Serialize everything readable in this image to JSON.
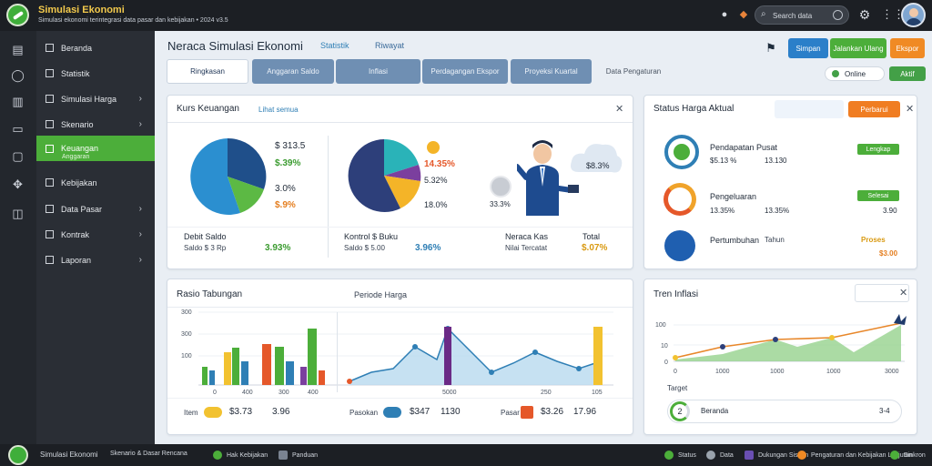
{
  "app": {
    "title": "Simulasi Ekonomi",
    "subtitle": "Simulasi ekonomi terintegrasi data pasar dan kebijakan • 2024 v3.5"
  },
  "topbar": {
    "search_placeholder": "Search data"
  },
  "sidebar": {
    "items": [
      {
        "label": "Beranda",
        "has_chevron": false
      },
      {
        "label": "Statistik",
        "has_chevron": false
      },
      {
        "label": "Simulasi Harga",
        "has_chevron": true
      },
      {
        "label": "Skenario",
        "has_chevron": true
      },
      {
        "label": "Keuangan",
        "has_chevron": false,
        "active": true,
        "sub": "Anggaran"
      },
      {
        "label": "Kebijakan",
        "has_chevron": false
      },
      {
        "label": "Data Pasar",
        "has_chevron": true
      },
      {
        "label": "Kontrak",
        "has_chevron": true
      },
      {
        "label": "Laporan",
        "has_chevron": true
      }
    ]
  },
  "header": {
    "title": "Neraca Simulasi Ekonomi",
    "link1": "Statistik",
    "link2": "Riwayat",
    "btn_primary": "Simpan",
    "btn_green": "Jalankan Ulang",
    "btn_orange": "Ekspor",
    "status": "Online",
    "badge": "Aktif"
  },
  "tabs": [
    {
      "label": "Ringkasan"
    },
    {
      "label": "Anggaran Saldo"
    },
    {
      "label": "Inflasi"
    },
    {
      "label": "Perdagangan Ekspor"
    },
    {
      "label": "Proyeksi Kuartal"
    },
    {
      "label": "Data Pengaturan"
    }
  ],
  "card_finance": {
    "title": "Kurs Keuangan",
    "link": "Lihat semua",
    "pie1_vals": [
      "$ 313.5",
      "$.39%",
      "3.0%",
      "$.9%"
    ],
    "pie2_vals": [
      "14.35%",
      "5.32%",
      "18.0%"
    ],
    "person_val": "$8.3%",
    "coin_val": "33.3%",
    "footer": [
      {
        "label": "Debit Saldo",
        "sub": "Saldo $ 3 Rp",
        "val": "3.93%"
      },
      {
        "label": "Kontrol $ Buku",
        "sub": "Saldo $ 5.00",
        "val": "3.96%"
      },
      {
        "label": "Neraca Kas",
        "sub": "Nilai Tercatat",
        "val": "$.07%"
      },
      {
        "label": "Total",
        "sub": "",
        "val": ""
      }
    ]
  },
  "card_status": {
    "title": "Status Harga Aktual",
    "btn": "Perbarui",
    "rows": [
      {
        "name": "Pendapatan Pusat",
        "sub": "$5.13 %",
        "mid": "13.130",
        "badge": "Lengkap",
        "badge_color": "#4cae3a",
        "val": ""
      },
      {
        "name": "Pengeluaran",
        "sub": "13.35%",
        "mid": "13.35%",
        "badge": "Selesai",
        "badge_color": "#4cae3a",
        "val": "3.90"
      },
      {
        "name": "Pertumbuhan",
        "sub": "",
        "mid": "Tahun",
        "badge": "Proses",
        "badge_color": "#e8a317",
        "val": "$3.00"
      }
    ]
  },
  "card_growth": {
    "title": "Rasio Tabungan",
    "subtitle": "Periode Harga",
    "y_ticks": [
      "300",
      "300",
      "100"
    ],
    "x_ticks": [
      "0",
      "400",
      "300",
      "5000",
      "250",
      "105"
    ],
    "legend": [
      {
        "color": "#f2c230",
        "label": "Item",
        "val": "$3.73",
        "val2": "3.96"
      },
      {
        "color": "#2f7fb5",
        "label": "Pasokan",
        "val": "$347",
        "val2": "1130"
      },
      {
        "color": "#e5582a",
        "label": "Pasar",
        "val": "$3.26",
        "val2": "17.96"
      }
    ]
  },
  "card_trend": {
    "title": "Tren Inflasi",
    "y_ticks": [
      "100",
      "10",
      "0"
    ],
    "x_ticks": [
      "0",
      "1000",
      "1000",
      "1000",
      "3000"
    ],
    "bar_label": "Target",
    "bar_num": "2",
    "bar_text": "Beranda",
    "bar_val": "3-4"
  },
  "footer": {
    "brand": "Simulasi Ekonomi",
    "items": [
      "Skenario & Dasar Rencana",
      "Hak Kebijakan",
      "Panduan",
      "Status",
      "Data",
      "Dukungan Sistem",
      "Pengaturan dan Kebijakan Lanjutan",
      "Sinkron"
    ]
  },
  "colors": {
    "accent_green": "#4cae3a",
    "primary_blue": "#2b7fc9",
    "orange": "#f08a24"
  }
}
